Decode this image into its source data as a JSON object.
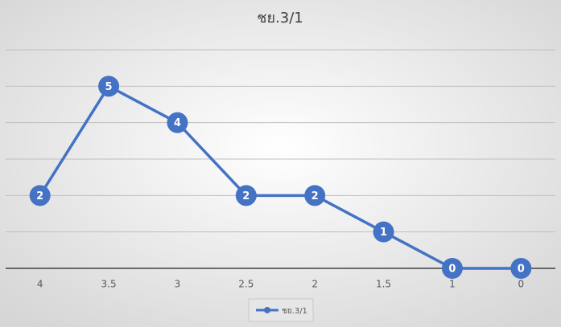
{
  "chart_data": {
    "type": "line",
    "title": "ชย.3/1",
    "categories": [
      "4",
      "3.5",
      "3",
      "2.5",
      "2",
      "1.5",
      "1",
      "0"
    ],
    "series": [
      {
        "name": "ชย.3/1",
        "color": "#4472c4",
        "values": [
          2,
          5,
          4,
          2,
          2,
          1,
          0,
          0
        ]
      }
    ],
    "ylim": [
      0,
      6
    ],
    "yticks": [
      0,
      1,
      2,
      3,
      4,
      5,
      6
    ],
    "ytick_labels": false,
    "grid": true,
    "legend": "bottom"
  }
}
